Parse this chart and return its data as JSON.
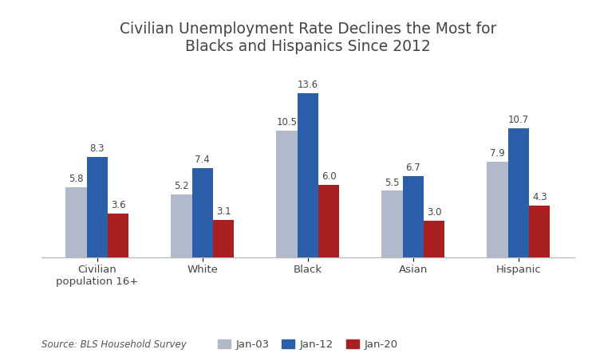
{
  "title": "Civilian Unemployment Rate Declines the Most for\nBlacks and Hispanics Since 2012",
  "categories": [
    "Civilian\npopulation 16+",
    "White",
    "Black",
    "Asian",
    "Hispanic"
  ],
  "series": {
    "Jan-03": [
      5.8,
      5.2,
      10.5,
      5.5,
      7.9
    ],
    "Jan-12": [
      8.3,
      7.4,
      13.6,
      6.7,
      10.7
    ],
    "Jan-20": [
      3.6,
      3.1,
      6.0,
      3.0,
      4.3
    ]
  },
  "colors": {
    "Jan-03": "#b0baca",
    "Jan-12": "#2b5faa",
    "Jan-20": "#aa1f1f"
  },
  "ylim": [
    0,
    16
  ],
  "bar_width": 0.2,
  "source_text": "Source: BLS Household Survey",
  "title_fontsize": 13.5,
  "legend_fontsize": 9.5,
  "label_fontsize": 8.5,
  "tick_fontsize": 9.5,
  "source_fontsize": 8.5,
  "background_color": "#ffffff"
}
